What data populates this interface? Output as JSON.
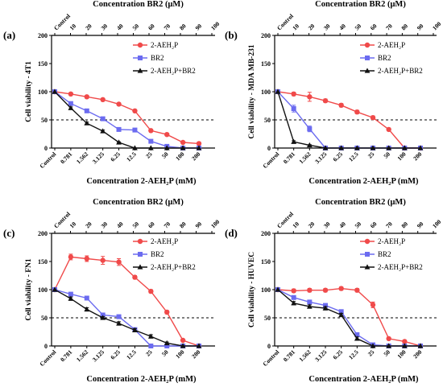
{
  "chart_data": [
    {
      "type": "line",
      "panel": "(a)",
      "title_top": "Concentration BR2 (μM)",
      "xlabel": "Concentration 2-AEH₂P (mM)",
      "ylabel": "Cell viability - 4T1",
      "top_ticks": [
        "Control",
        "10",
        "20",
        "30",
        "40",
        "50",
        "60",
        "70",
        "80",
        "90",
        "100"
      ],
      "categories": [
        "Control",
        "0.781",
        "1.562",
        "3.125",
        "6.25",
        "12.5",
        "25",
        "50",
        "100",
        "200"
      ],
      "ylim": [
        0,
        200
      ],
      "yticks": [
        "0",
        "50",
        "100",
        "150",
        "200"
      ],
      "reference_line": 50,
      "series": [
        {
          "name": "2-AEH₂P",
          "color": "#f04a4a",
          "marker": "circle",
          "values": [
            100,
            96,
            91,
            86,
            78,
            66,
            31,
            24,
            10,
            8
          ],
          "err": [
            0,
            2,
            2,
            2,
            2,
            2,
            2,
            2,
            2,
            1
          ]
        },
        {
          "name": "BR2",
          "color": "#6b6bf0",
          "marker": "square",
          "values": [
            100,
            79,
            66,
            52,
            33,
            32,
            12,
            3,
            0,
            0
          ],
          "err": [
            0,
            3,
            2,
            2,
            2,
            2,
            2,
            1,
            0,
            0
          ]
        },
        {
          "name": "2-AEH₂P+BR2",
          "color": "#111111",
          "marker": "triangle",
          "values": [
            100,
            71,
            44,
            30,
            10,
            0,
            0,
            0,
            0,
            0
          ],
          "err": [
            0,
            2,
            2,
            2,
            1,
            0,
            0,
            0,
            0,
            0
          ]
        }
      ]
    },
    {
      "type": "line",
      "panel": "(b)",
      "title_top": "Concentration BR2 (μM)",
      "xlabel": "Concentration 2-AEH₂P (mM)",
      "ylabel": "Cell viability - MDA MB-231",
      "top_ticks": [
        "Control",
        "10",
        "20",
        "30",
        "40",
        "50",
        "60",
        "70",
        "80",
        "90",
        "100"
      ],
      "categories": [
        "Control",
        "0.781",
        "1.562",
        "3.125",
        "6.25",
        "12.5",
        "25",
        "50",
        "100",
        "200"
      ],
      "ylim": [
        0,
        200
      ],
      "yticks": [
        "0",
        "50",
        "100",
        "150",
        "200"
      ],
      "reference_line": 50,
      "series": [
        {
          "name": "2-AEH₂P",
          "color": "#f04a4a",
          "marker": "circle",
          "values": [
            100,
            96,
            91,
            84,
            76,
            64,
            54,
            33,
            0,
            0
          ],
          "err": [
            0,
            3,
            8,
            3,
            3,
            3,
            3,
            2,
            0,
            0
          ]
        },
        {
          "name": "BR2",
          "color": "#6b6bf0",
          "marker": "square",
          "values": [
            100,
            70,
            34,
            0,
            0,
            0,
            0,
            0,
            0,
            0
          ],
          "err": [
            0,
            6,
            5,
            0,
            0,
            0,
            0,
            0,
            0,
            0
          ]
        },
        {
          "name": "2-AEH₂P+BR2",
          "color": "#111111",
          "marker": "triangle",
          "values": [
            100,
            11,
            5,
            0,
            0,
            0,
            0,
            0,
            0,
            0
          ],
          "err": [
            0,
            2,
            1,
            0,
            0,
            0,
            0,
            0,
            0,
            0
          ]
        }
      ]
    },
    {
      "type": "line",
      "panel": "(c)",
      "title_top": "Concentration BR2 (μM)",
      "xlabel": "Concentration 2-AEH₂P (mM)",
      "ylabel": "Cell viability - FN1",
      "top_ticks": [
        "Control",
        "10",
        "20",
        "30",
        "40",
        "50",
        "60",
        "70",
        "80",
        "90",
        "100"
      ],
      "categories": [
        "Control",
        "0.781",
        "1.562",
        "3.125",
        "6.25",
        "12.5",
        "25",
        "50",
        "100",
        "200"
      ],
      "ylim": [
        0,
        200
      ],
      "yticks": [
        "0",
        "50",
        "100",
        "150",
        "200"
      ],
      "reference_line": 50,
      "series": [
        {
          "name": "2-AEH₂P",
          "color": "#f04a4a",
          "marker": "circle",
          "values": [
            100,
            158,
            155,
            152,
            149,
            122,
            97,
            60,
            10,
            0
          ],
          "err": [
            0,
            5,
            5,
            7,
            6,
            3,
            3,
            3,
            2,
            0
          ]
        },
        {
          "name": "BR2",
          "color": "#6b6bf0",
          "marker": "square",
          "values": [
            100,
            92,
            85,
            55,
            52,
            29,
            0,
            0,
            0,
            0
          ],
          "err": [
            0,
            3,
            3,
            3,
            3,
            3,
            0,
            0,
            0,
            0
          ]
        },
        {
          "name": "2-AEH₂P+BR2",
          "color": "#111111",
          "marker": "triangle",
          "values": [
            100,
            84,
            65,
            50,
            40,
            28,
            17,
            5,
            0,
            0
          ],
          "err": [
            0,
            3,
            3,
            2,
            3,
            3,
            3,
            2,
            0,
            0
          ]
        }
      ]
    },
    {
      "type": "line",
      "panel": "(d)",
      "title_top": "Concentration BR2 (μM)",
      "xlabel": "Concentration 2-AEH₂P (mM)",
      "ylabel": "Cell viability - HUVEC",
      "top_ticks": [
        "Control",
        "10",
        "20",
        "30",
        "40",
        "50",
        "60",
        "70",
        "80",
        "90",
        "100"
      ],
      "categories": [
        "Control",
        "0.781",
        "1.562",
        "3.125",
        "6.25",
        "12.5",
        "25",
        "50",
        "100",
        "200"
      ],
      "ylim": [
        0,
        200
      ],
      "yticks": [
        "0",
        "50",
        "100",
        "150",
        "200"
      ],
      "reference_line": 50,
      "series": [
        {
          "name": "2-AEH₂P",
          "color": "#f04a4a",
          "marker": "circle",
          "values": [
            100,
            98,
            99,
            99,
            102,
            99,
            73,
            13,
            8,
            0
          ],
          "err": [
            0,
            3,
            3,
            3,
            3,
            3,
            5,
            2,
            2,
            0
          ]
        },
        {
          "name": "BR2",
          "color": "#6b6bf0",
          "marker": "square",
          "values": [
            100,
            86,
            78,
            72,
            61,
            20,
            2,
            0,
            0,
            0
          ],
          "err": [
            0,
            3,
            3,
            3,
            3,
            3,
            1,
            0,
            0,
            0
          ]
        },
        {
          "name": "2-AEH₂P+BR2",
          "color": "#111111",
          "marker": "triangle",
          "values": [
            100,
            76,
            70,
            67,
            55,
            13,
            0,
            0,
            0,
            0
          ],
          "err": [
            0,
            3,
            3,
            3,
            3,
            3,
            0,
            0,
            0,
            0
          ]
        }
      ]
    }
  ]
}
